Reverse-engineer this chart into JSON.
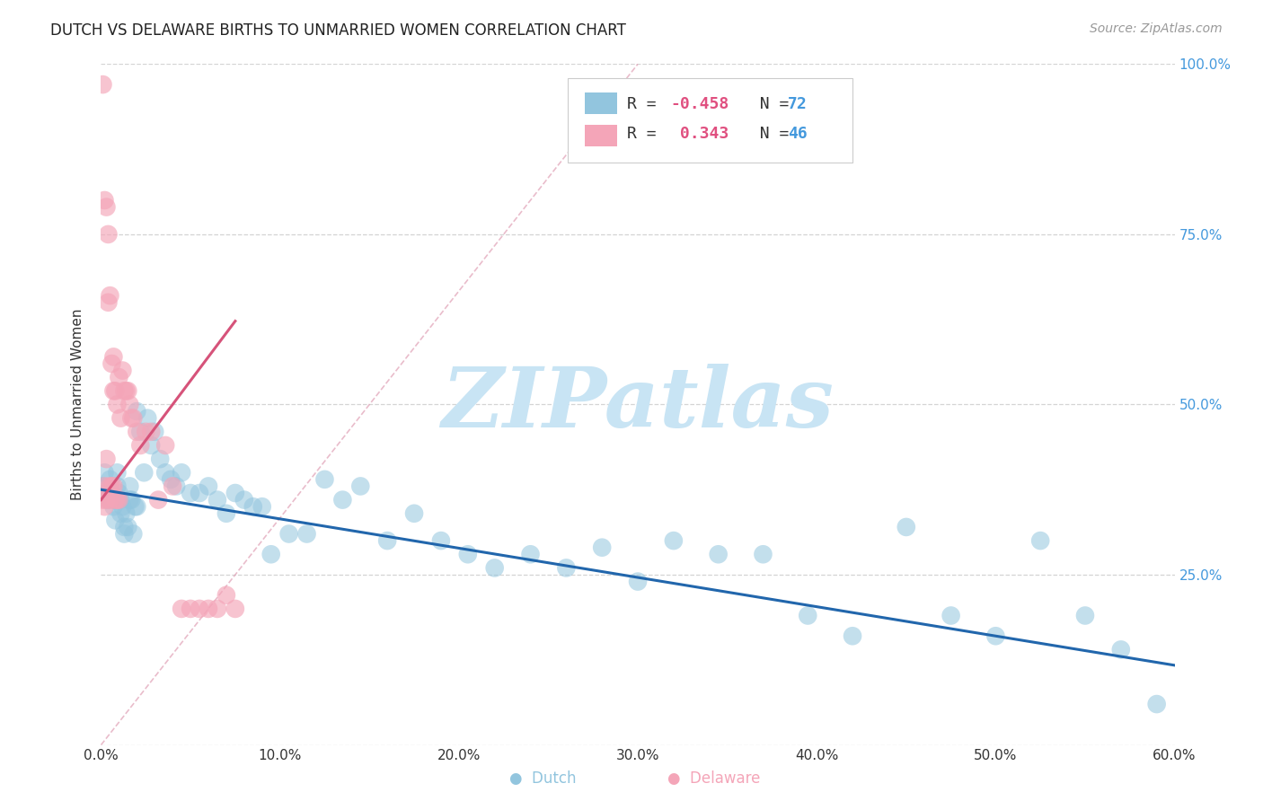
{
  "title": "DUTCH VS DELAWARE BIRTHS TO UNMARRIED WOMEN CORRELATION CHART",
  "source": "Source: ZipAtlas.com",
  "ylabel": "Births to Unmarried Women",
  "xlim": [
    0.0,
    0.6
  ],
  "ylim": [
    0.0,
    1.0
  ],
  "dutch_r": "-0.458",
  "dutch_n": "72",
  "delaware_r": "0.343",
  "delaware_n": "46",
  "dutch_color": "#92c5de",
  "delaware_color": "#f4a5b8",
  "dutch_line_color": "#2166ac",
  "delaware_line_color": "#d6537a",
  "right_axis_color": "#4499dd",
  "watermark_color": "#c8e4f4",
  "dutch_x": [
    0.001,
    0.002,
    0.003,
    0.004,
    0.005,
    0.006,
    0.007,
    0.008,
    0.009,
    0.01,
    0.011,
    0.012,
    0.013,
    0.014,
    0.015,
    0.016,
    0.017,
    0.018,
    0.019,
    0.02,
    0.022,
    0.024,
    0.026,
    0.028,
    0.03,
    0.033,
    0.036,
    0.039,
    0.042,
    0.045,
    0.05,
    0.055,
    0.06,
    0.065,
    0.07,
    0.075,
    0.08,
    0.085,
    0.09,
    0.095,
    0.105,
    0.115,
    0.125,
    0.135,
    0.145,
    0.16,
    0.175,
    0.19,
    0.205,
    0.22,
    0.24,
    0.26,
    0.28,
    0.3,
    0.32,
    0.345,
    0.37,
    0.395,
    0.42,
    0.45,
    0.475,
    0.5,
    0.525,
    0.55,
    0.57,
    0.59,
    0.007,
    0.009,
    0.011,
    0.013,
    0.016,
    0.02
  ],
  "dutch_y": [
    0.38,
    0.4,
    0.37,
    0.36,
    0.39,
    0.37,
    0.35,
    0.33,
    0.4,
    0.37,
    0.36,
    0.35,
    0.31,
    0.34,
    0.32,
    0.38,
    0.36,
    0.31,
    0.35,
    0.49,
    0.46,
    0.4,
    0.48,
    0.44,
    0.46,
    0.42,
    0.4,
    0.39,
    0.38,
    0.4,
    0.37,
    0.37,
    0.38,
    0.36,
    0.34,
    0.37,
    0.36,
    0.35,
    0.35,
    0.28,
    0.31,
    0.31,
    0.39,
    0.36,
    0.38,
    0.3,
    0.34,
    0.3,
    0.28,
    0.26,
    0.28,
    0.26,
    0.29,
    0.24,
    0.3,
    0.28,
    0.28,
    0.19,
    0.16,
    0.32,
    0.19,
    0.16,
    0.3,
    0.19,
    0.14,
    0.06,
    0.36,
    0.38,
    0.34,
    0.32,
    0.36,
    0.35
  ],
  "delaware_x": [
    0.001,
    0.001,
    0.002,
    0.002,
    0.002,
    0.003,
    0.003,
    0.003,
    0.004,
    0.004,
    0.005,
    0.005,
    0.005,
    0.006,
    0.006,
    0.007,
    0.007,
    0.007,
    0.008,
    0.008,
    0.009,
    0.009,
    0.01,
    0.01,
    0.011,
    0.012,
    0.013,
    0.014,
    0.015,
    0.016,
    0.017,
    0.018,
    0.02,
    0.022,
    0.025,
    0.028,
    0.032,
    0.036,
    0.04,
    0.045,
    0.05,
    0.055,
    0.06,
    0.065,
    0.07,
    0.075
  ],
  "delaware_y": [
    0.97,
    0.36,
    0.8,
    0.38,
    0.35,
    0.42,
    0.79,
    0.36,
    0.75,
    0.65,
    0.66,
    0.38,
    0.36,
    0.56,
    0.38,
    0.57,
    0.52,
    0.38,
    0.52,
    0.36,
    0.5,
    0.36,
    0.54,
    0.36,
    0.48,
    0.55,
    0.52,
    0.52,
    0.52,
    0.5,
    0.48,
    0.48,
    0.46,
    0.44,
    0.46,
    0.46,
    0.36,
    0.44,
    0.38,
    0.2,
    0.2,
    0.2,
    0.2,
    0.2,
    0.22,
    0.2
  ]
}
